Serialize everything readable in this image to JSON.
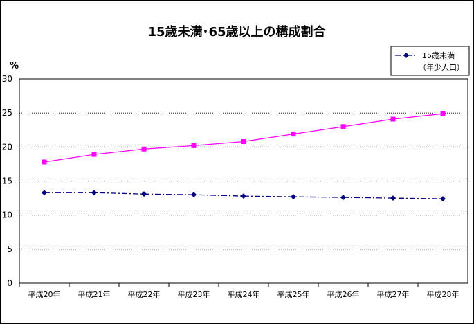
{
  "chart_data": {
    "type": "line",
    "title": "15歳未満･65歳以上の構成割合",
    "ylabel": "%",
    "xlabel": "",
    "categories": [
      "平成20年",
      "平成21年",
      "平成22年",
      "平成23年",
      "平成24年",
      "平成25年",
      "平成26年",
      "平成27年",
      "平成28年"
    ],
    "ylim": [
      0,
      30
    ],
    "yticks": [
      "0",
      "5",
      "10",
      "15",
      "20",
      "25",
      "30"
    ],
    "grid": "horizontal-dotted",
    "legend_position": "top-right",
    "series": [
      {
        "name": "15歳未満",
        "name_sub": "（年少人口）",
        "values": [
          13.3,
          13.3,
          13.1,
          13.0,
          12.8,
          12.7,
          12.6,
          12.5,
          12.4
        ],
        "color": "#000080",
        "marker": "diamond",
        "line_style": "dash-dot"
      },
      {
        "values": [
          17.8,
          18.9,
          19.7,
          20.2,
          20.8,
          21.9,
          23.0,
          24.1,
          24.9
        ],
        "color": "#ff00ff",
        "marker": "square",
        "line_style": "solid"
      }
    ]
  }
}
